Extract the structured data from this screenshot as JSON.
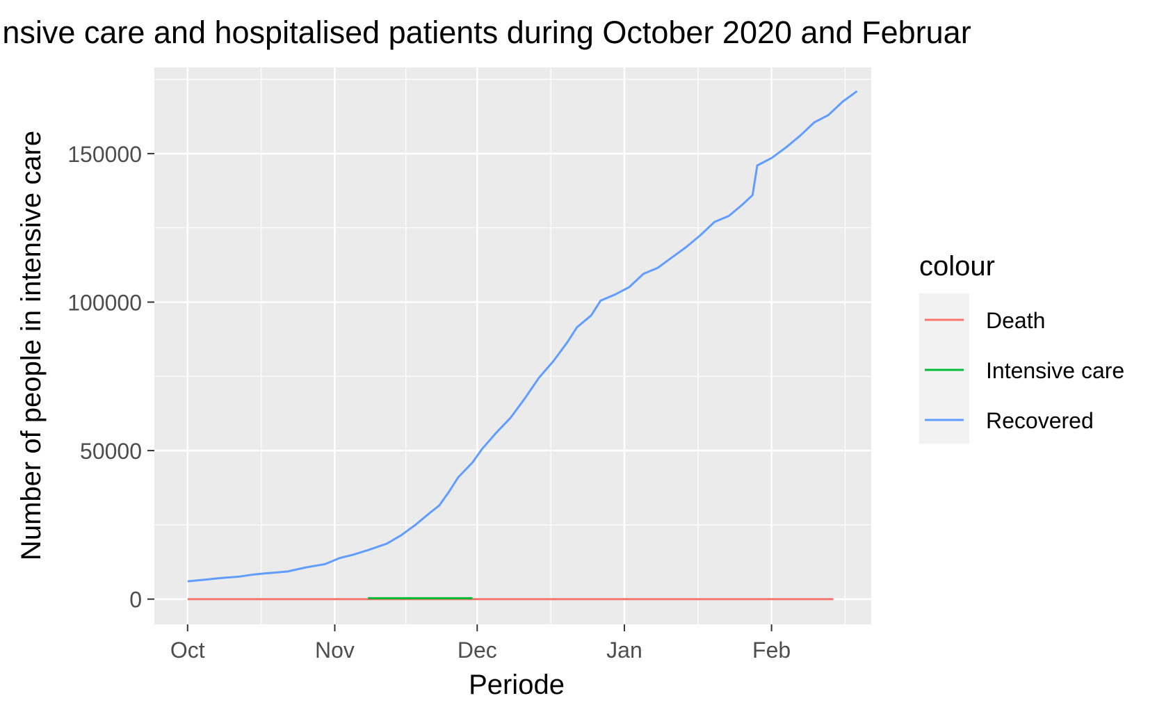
{
  "chart_data": {
    "type": "line",
    "title": "nsive care and hospitalised patients during October 2020 and Februar",
    "xlabel": "Periode",
    "ylabel": "Number of people in intensive care",
    "x_ticks": [
      "Oct",
      "Nov",
      "Dec",
      "Jan",
      "Feb"
    ],
    "x_tick_dates": [
      "2020-10-01",
      "2020-11-01",
      "2020-12-01",
      "2021-01-01",
      "2021-02-01"
    ],
    "xlim": [
      "2020-09-24",
      "2021-02-22"
    ],
    "y_ticks": [
      "0",
      "50000",
      "100000",
      "150000"
    ],
    "ylim": [
      -8500,
      179000
    ],
    "grid": true,
    "panel_background": "#ebebeb",
    "grid_color": "#ffffff",
    "legend": {
      "title": "colour",
      "position": "right"
    },
    "series": [
      {
        "name": "Death",
        "color": "#f8766d",
        "points": [
          [
            "2020-10-01",
            0
          ],
          [
            "2021-02-14",
            0
          ]
        ]
      },
      {
        "name": "Intensive care",
        "color": "#00ba38",
        "points": [
          [
            "2020-11-08",
            300
          ],
          [
            "2020-11-30",
            300
          ]
        ]
      },
      {
        "name": "Recovered",
        "color": "#619cff",
        "points": [
          [
            "2020-10-01",
            6000
          ],
          [
            "2020-10-05",
            6600
          ],
          [
            "2020-10-08",
            7100
          ],
          [
            "2020-10-12",
            7600
          ],
          [
            "2020-10-15",
            8300
          ],
          [
            "2020-10-19",
            8900
          ],
          [
            "2020-10-22",
            9300
          ],
          [
            "2020-10-26",
            10700
          ],
          [
            "2020-10-30",
            11800
          ],
          [
            "2020-11-02",
            13800
          ],
          [
            "2020-11-05",
            15000
          ],
          [
            "2020-11-08",
            16500
          ],
          [
            "2020-11-12",
            18700
          ],
          [
            "2020-11-15",
            21500
          ],
          [
            "2020-11-18",
            25000
          ],
          [
            "2020-11-21",
            29000
          ],
          [
            "2020-11-23",
            31500
          ],
          [
            "2020-11-25",
            36000
          ],
          [
            "2020-11-27",
            41000
          ],
          [
            "2020-11-30",
            46000
          ],
          [
            "2020-12-02",
            50500
          ],
          [
            "2020-12-05",
            56000
          ],
          [
            "2020-12-08",
            61000
          ],
          [
            "2020-12-11",
            67500
          ],
          [
            "2020-12-14",
            74500
          ],
          [
            "2020-12-17",
            80000
          ],
          [
            "2020-12-20",
            86500
          ],
          [
            "2020-12-22",
            91500
          ],
          [
            "2020-12-25",
            95500
          ],
          [
            "2020-12-27",
            100500
          ],
          [
            "2020-12-30",
            102500
          ],
          [
            "2021-01-02",
            105000
          ],
          [
            "2021-01-05",
            109500
          ],
          [
            "2021-01-08",
            111500
          ],
          [
            "2021-01-11",
            115000
          ],
          [
            "2021-01-14",
            118500
          ],
          [
            "2021-01-17",
            122500
          ],
          [
            "2021-01-20",
            127000
          ],
          [
            "2021-01-23",
            129000
          ],
          [
            "2021-01-26",
            133000
          ],
          [
            "2021-01-28",
            136000
          ],
          [
            "2021-01-29",
            146000
          ],
          [
            "2021-02-01",
            148500
          ],
          [
            "2021-02-04",
            152000
          ],
          [
            "2021-02-07",
            156000
          ],
          [
            "2021-02-10",
            160500
          ],
          [
            "2021-02-13",
            163000
          ],
          [
            "2021-02-16",
            167500
          ],
          [
            "2021-02-19",
            171000
          ]
        ]
      }
    ]
  }
}
